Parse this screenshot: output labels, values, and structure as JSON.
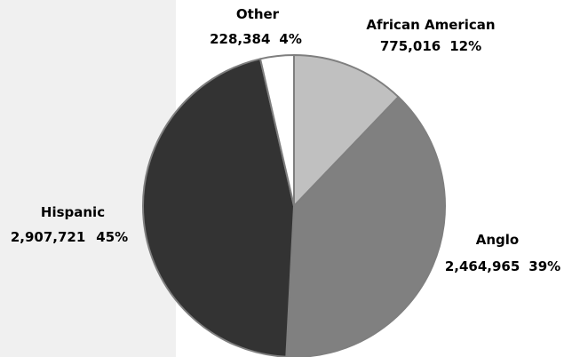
{
  "chart_data": {
    "type": "pie",
    "title": "",
    "slices": [
      {
        "label": "African American",
        "value": 775016,
        "value_text": "775,016",
        "percent_text": "12%",
        "color": "#c0c0c0"
      },
      {
        "label": "Anglo",
        "value": 2464965,
        "value_text": "2,464,965",
        "percent_text": "39%",
        "color": "#808080"
      },
      {
        "label": "Hispanic",
        "value": 2907721,
        "value_text": "2,907,721",
        "percent_text": "45%",
        "color": "#333333"
      },
      {
        "label": "Other",
        "value": 228384,
        "value_text": "228,384",
        "percent_text": "4%",
        "color": "#ffffff"
      }
    ],
    "start_angle": "12 o'clock",
    "direction": "clockwise",
    "slice_border_color": "#7f7f7f",
    "legend": "none"
  },
  "background": {
    "left_panel_color": "#f0f0f0"
  }
}
